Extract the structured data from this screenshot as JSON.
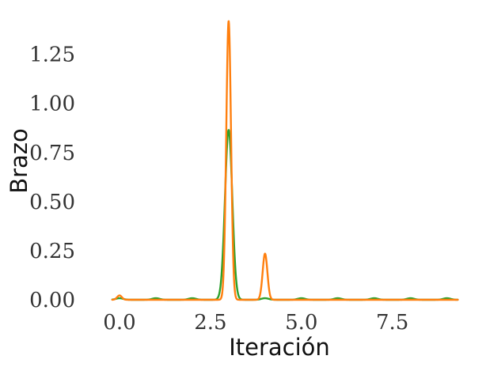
{
  "chart_data": {
    "type": "line",
    "title": "",
    "xlabel": "Iteración",
    "ylabel": "Brazo",
    "xlim": [
      -0.5,
      9.4
    ],
    "ylim": [
      0,
      1.43
    ],
    "x_ticks": [
      0.0,
      2.5,
      5.0,
      7.5
    ],
    "x_tick_labels": [
      "0.0",
      "2.5",
      "5.0",
      "7.5"
    ],
    "y_ticks": [
      0.0,
      0.25,
      0.5,
      0.75,
      1.0,
      1.25
    ],
    "y_tick_labels": [
      "0.00",
      "0.25",
      "0.50",
      "0.75",
      "1.00",
      "1.25"
    ],
    "grid": false,
    "legend": "none",
    "series": [
      {
        "color": "#2ca02c",
        "peaks": [
          {
            "x": 0,
            "y": 0.008
          },
          {
            "x": 1,
            "y": 0.008
          },
          {
            "x": 2,
            "y": 0.008
          },
          {
            "x": 3,
            "y": 0.865
          },
          {
            "x": 4,
            "y": 0.008
          },
          {
            "x": 5,
            "y": 0.008
          },
          {
            "x": 6,
            "y": 0.008
          },
          {
            "x": 7,
            "y": 0.008
          },
          {
            "x": 8,
            "y": 0.008
          },
          {
            "x": 9,
            "y": 0.008
          }
        ],
        "peak_width": 0.1
      },
      {
        "color": "#ff7f0e",
        "peaks": [
          {
            "x": 0,
            "y": 0.022
          },
          {
            "x": 3,
            "y": 1.42
          },
          {
            "x": 4,
            "y": 0.235
          }
        ],
        "peak_width": 0.065
      }
    ]
  }
}
